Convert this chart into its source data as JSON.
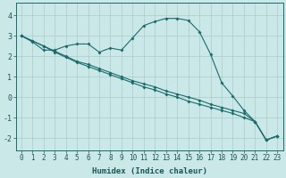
{
  "xlabel": "Humidex (Indice chaleur)",
  "background_color": "#cbe8e8",
  "line_color": "#1a6b6b",
  "grid_color": "#aacccc",
  "spine_color": "#1a6b6b",
  "xlim": [
    -0.5,
    23.5
  ],
  "ylim": [
    -2.6,
    4.6
  ],
  "yticks": [
    -2,
    -1,
    0,
    1,
    2,
    3,
    4
  ],
  "xticks": [
    0,
    1,
    2,
    3,
    4,
    5,
    6,
    7,
    8,
    9,
    10,
    11,
    12,
    13,
    14,
    15,
    16,
    17,
    18,
    19,
    20,
    21,
    22,
    23
  ],
  "line1_x": [
    0,
    1,
    2,
    3,
    4,
    5,
    6,
    7,
    8,
    9,
    10,
    11,
    12,
    13,
    14,
    15,
    16,
    17,
    18,
    19,
    20,
    21,
    22,
    23
  ],
  "line1_y": [
    3.0,
    2.7,
    2.3,
    2.3,
    2.5,
    2.6,
    2.6,
    2.2,
    2.4,
    2.3,
    2.9,
    3.5,
    3.7,
    3.85,
    3.85,
    3.75,
    3.2,
    2.1,
    0.7,
    0.05,
    -0.65,
    -1.2,
    -2.1,
    -1.9
  ],
  "line2_x": [
    0,
    1,
    2,
    3,
    4,
    5,
    6,
    7,
    8,
    9,
    10,
    11,
    12,
    13,
    14,
    15,
    16,
    17,
    18,
    19,
    20,
    21,
    22,
    23
  ],
  "line2_y": [
    3.0,
    2.75,
    2.5,
    2.25,
    2.0,
    1.75,
    1.6,
    1.4,
    1.2,
    1.0,
    0.8,
    0.65,
    0.5,
    0.3,
    0.15,
    0.0,
    -0.15,
    -0.35,
    -0.5,
    -0.65,
    -0.8,
    -1.2,
    -2.1,
    -1.9
  ],
  "line3_x": [
    0,
    1,
    2,
    3,
    4,
    5,
    6,
    7,
    8,
    9,
    10,
    11,
    12,
    13,
    14,
    15,
    16,
    17,
    18,
    19,
    20,
    21,
    22,
    23
  ],
  "line3_y": [
    3.0,
    2.75,
    2.5,
    2.2,
    1.95,
    1.7,
    1.5,
    1.3,
    1.1,
    0.9,
    0.7,
    0.5,
    0.35,
    0.15,
    0.0,
    -0.2,
    -0.35,
    -0.5,
    -0.65,
    -0.8,
    -1.0,
    -1.2,
    -2.1,
    -1.9
  ],
  "tick_color": "#1a5555",
  "tick_fontsize": 5.5,
  "ytick_fontsize": 6.0,
  "xlabel_fontsize": 6.5
}
